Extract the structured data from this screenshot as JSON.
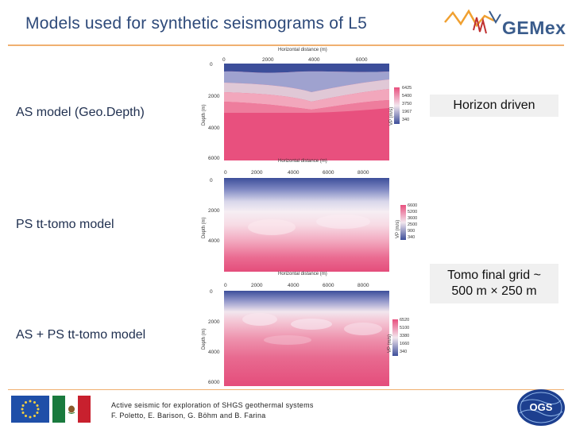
{
  "slide": {
    "title": "Models used for synthetic seismograms of L5",
    "logo_text": "GEMex"
  },
  "labels": {
    "model1": "AS model (Geo.Depth)",
    "model2": "PS tt-tomo model",
    "model3": "AS + PS tt-tomo model",
    "box1": "Horizon driven",
    "box2_line1": "Tomo final grid ~",
    "box2_line2": "500 m × 250 m"
  },
  "panels": [
    {
      "htitle": "Horizontal distance (m)",
      "xticks": [
        "0",
        "2000",
        "4000",
        "6000"
      ],
      "yticks": [
        "0",
        "2000",
        "4000",
        "6000"
      ],
      "ylabel": "Depth (m)",
      "cbar_label": "VP (m/s)",
      "cbar_ticks": [
        "6425",
        "5400",
        "3750",
        "1967",
        "340"
      ]
    },
    {
      "htitle": "Horizontal distance (m)",
      "xticks": [
        "0",
        "2000",
        "4000",
        "6000",
        "8000"
      ],
      "yticks": [
        "0",
        "2000",
        "4000"
      ],
      "ylabel": "Depth (m)",
      "cbar_label": "VP (m/s)",
      "cbar_ticks": [
        "6600",
        "5200",
        "3600",
        "2500",
        "900",
        "340"
      ]
    },
    {
      "htitle": "Horizontal distance (m)",
      "xticks": [
        "0",
        "2000",
        "4000",
        "6000",
        "8000"
      ],
      "yticks": [
        "0",
        "2000",
        "4000",
        "6000"
      ],
      "ylabel": "Depth (m)",
      "cbar_label": "VP (m/s)",
      "cbar_ticks": [
        "6520",
        "5100",
        "3380",
        "1660",
        "340"
      ]
    }
  ],
  "footer": {
    "line1": "Active seismic for exploration of SHGS geothermal systems",
    "line2": "F. Poletto, E. Barison, G. Böhm and B. Farina",
    "ogs_text": "OGS"
  }
}
